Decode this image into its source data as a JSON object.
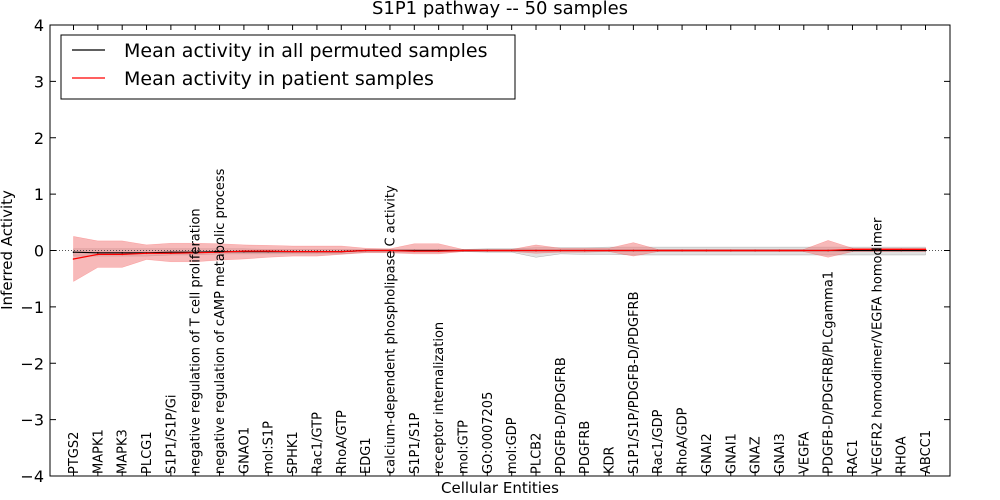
{
  "chart_data": {
    "type": "line",
    "title": "S1P1 pathway -- 50 samples",
    "xlabel": "Cellular Entities",
    "ylabel": "Inferred Activity",
    "ylim": [
      -4,
      4
    ],
    "yticks": [
      4,
      3,
      2,
      1,
      0,
      -1,
      -2,
      -3,
      -4
    ],
    "ytick_labels": [
      "4",
      "3",
      "2",
      "1",
      "0",
      "−1",
      "−2",
      "−3",
      "−4"
    ],
    "legend_position": "top-left",
    "categories": [
      "PTGS2",
      "MAPK1",
      "MAPK3",
      "PLCG1",
      "S1P1/S1P/Gi",
      "negative regulation of T cell proliferation",
      "negative regulation of cAMP metabolic process",
      "GNAO1",
      "mol:S1P",
      "SPHK1",
      "Rac1/GTP",
      "RhoA/GTP",
      "EDG1",
      "calcium-dependent phospholipase C activity",
      "S1P1/S1P",
      "receptor internalization",
      "mol:GTP",
      "GO:0007205",
      "mol:GDP",
      "PLCB2",
      "PDGFB-D/PDGFRB",
      "PDGFRB",
      "KDR",
      "S1P1/S1P/PDGFB-D/PDGFRB",
      "Rac1/GDP",
      "RhoA/GDP",
      "GNAI2",
      "GNAI1",
      "GNAZ",
      "GNAI3",
      "VEGFA",
      "PDGFB-D/PDGFRB/PLCgamma1",
      "RAC1",
      "VEGFR2 homodimer/VEGFA homodimer",
      "RHOA",
      "ABCC1"
    ],
    "series": [
      {
        "name": "Mean activity in all permuted samples",
        "color": "#000000",
        "band_color": "#aaaaaa",
        "values": [
          -0.03,
          -0.04,
          -0.04,
          -0.04,
          -0.03,
          -0.03,
          -0.02,
          -0.02,
          -0.02,
          -0.02,
          -0.02,
          -0.02,
          0.0,
          0.0,
          0.0,
          0.0,
          0.0,
          0.0,
          0.0,
          0.0,
          0.0,
          0.0,
          0.0,
          0.0,
          0.0,
          0.0,
          0.0,
          0.0,
          0.0,
          0.0,
          0.0,
          0.0,
          0.0,
          0.0,
          0.0,
          0.0
        ],
        "lower": [
          -0.1,
          -0.1,
          -0.1,
          -0.1,
          -0.08,
          -0.08,
          -0.06,
          -0.06,
          -0.06,
          -0.06,
          -0.06,
          -0.06,
          -0.03,
          -0.03,
          -0.03,
          -0.03,
          -0.02,
          -0.03,
          -0.03,
          -0.12,
          -0.06,
          -0.07,
          -0.07,
          -0.08,
          -0.08,
          -0.08,
          -0.08,
          -0.08,
          -0.08,
          -0.08,
          -0.08,
          -0.08,
          -0.08,
          -0.08,
          -0.08,
          -0.08
        ],
        "upper": [
          0.03,
          0.03,
          0.03,
          0.03,
          0.03,
          0.03,
          0.03,
          0.03,
          0.02,
          0.02,
          0.02,
          0.02,
          0.02,
          0.02,
          0.02,
          0.02,
          0.02,
          0.03,
          0.03,
          0.05,
          0.05,
          0.05,
          0.06,
          0.06,
          0.06,
          0.06,
          0.06,
          0.06,
          0.06,
          0.06,
          0.06,
          0.06,
          0.06,
          0.06,
          0.06,
          0.06
        ]
      },
      {
        "name": "Mean activity in patient samples",
        "color": "#ff0000",
        "band_color": "#f08080",
        "values": [
          -0.15,
          -0.07,
          -0.07,
          -0.05,
          -0.05,
          -0.04,
          -0.03,
          -0.01,
          -0.01,
          -0.02,
          -0.02,
          -0.02,
          0.0,
          0.0,
          -0.01,
          -0.01,
          0.0,
          0.0,
          0.0,
          0.0,
          0.0,
          0.0,
          0.0,
          0.0,
          0.0,
          0.0,
          0.0,
          0.0,
          0.0,
          0.0,
          0.0,
          0.0,
          0.02,
          0.02,
          0.02,
          0.02
        ],
        "lower": [
          -0.55,
          -0.3,
          -0.3,
          -0.16,
          -0.2,
          -0.2,
          -0.17,
          -0.15,
          -0.12,
          -0.1,
          -0.1,
          -0.07,
          -0.04,
          -0.04,
          -0.06,
          -0.06,
          -0.02,
          -0.02,
          -0.02,
          -0.05,
          -0.03,
          -0.03,
          -0.02,
          -0.1,
          -0.02,
          -0.02,
          -0.02,
          -0.02,
          -0.02,
          -0.02,
          -0.02,
          -0.12,
          -0.02,
          -0.02,
          -0.02,
          -0.02
        ],
        "upper": [
          0.25,
          0.17,
          0.17,
          0.1,
          0.13,
          0.13,
          0.12,
          0.1,
          0.09,
          0.08,
          0.08,
          0.08,
          0.04,
          0.03,
          0.12,
          0.12,
          0.02,
          0.02,
          0.02,
          0.1,
          0.04,
          0.04,
          0.04,
          0.14,
          0.02,
          0.02,
          0.02,
          0.02,
          0.02,
          0.02,
          0.02,
          0.18,
          0.04,
          0.04,
          0.04,
          0.04
        ]
      }
    ]
  }
}
